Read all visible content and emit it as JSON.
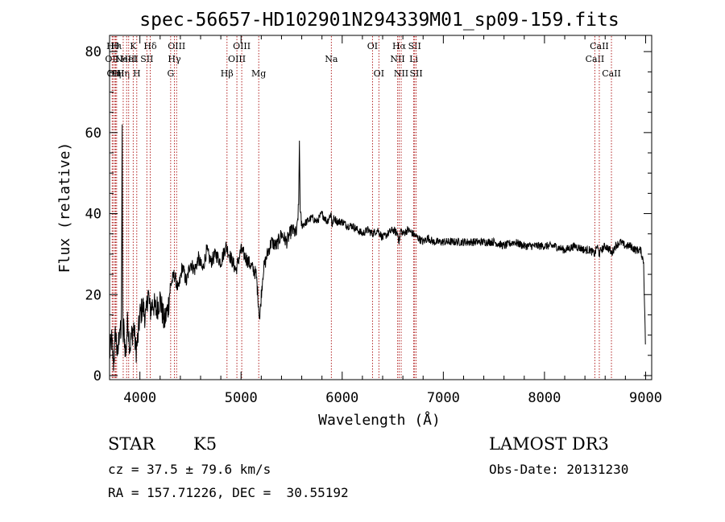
{
  "chart_data": {
    "type": "line",
    "title": "spec-56657-HD102901N294339M01_sp09-159.fits",
    "xlabel": "Wavelength (Å)",
    "ylabel": "Flux (relative)",
    "xlim": [
      3700,
      9060
    ],
    "ylim": [
      -1,
      84
    ],
    "x_ticks": [
      4000,
      5000,
      6000,
      7000,
      8000,
      9000
    ],
    "y_ticks": [
      0,
      20,
      40,
      60,
      80
    ],
    "series": [
      {
        "name": "flux",
        "x": [
          3700,
          3720,
          3740,
          3760,
          3780,
          3800,
          3815,
          3825,
          3830,
          3840,
          3860,
          3880,
          3900,
          3920,
          3940,
          3960,
          3980,
          4000,
          4030,
          4060,
          4080,
          4100,
          4130,
          4160,
          4200,
          4240,
          4280,
          4300,
          4340,
          4380,
          4420,
          4460,
          4500,
          4540,
          4580,
          4620,
          4660,
          4700,
          4750,
          4800,
          4850,
          4900,
          4950,
          5000,
          5050,
          5100,
          5150,
          5175,
          5185,
          5200,
          5220,
          5260,
          5300,
          5350,
          5400,
          5450,
          5500,
          5550,
          5570,
          5577,
          5585,
          5600,
          5650,
          5700,
          5750,
          5800,
          5850,
          5890,
          5900,
          5920,
          5950,
          6000,
          6050,
          6100,
          6150,
          6200,
          6250,
          6300,
          6350,
          6400,
          6450,
          6500,
          6550,
          6563,
          6580,
          6600,
          6650,
          6700,
          6750,
          6800,
          6850,
          6900,
          6950,
          7000,
          7100,
          7200,
          7300,
          7400,
          7500,
          7600,
          7700,
          7800,
          7900,
          8000,
          8100,
          8200,
          8300,
          8400,
          8450,
          8498,
          8520,
          8542,
          8560,
          8600,
          8650,
          8662,
          8700,
          8750,
          8800,
          8850,
          8900,
          8950,
          8980,
          9000
        ],
        "y": [
          5,
          9,
          3,
          11,
          4,
          13,
          8,
          62,
          7,
          12,
          5,
          14,
          7,
          10,
          12,
          6,
          9,
          15,
          17,
          14,
          21,
          16,
          18,
          16,
          19,
          13,
          17,
          22,
          25,
          21,
          27,
          23,
          28,
          26,
          29,
          26,
          31,
          28,
          30,
          28,
          32,
          29,
          26,
          31,
          29,
          27,
          25,
          17,
          14,
          20,
          26,
          30,
          33,
          32,
          35,
          33,
          36,
          35,
          42,
          58,
          40,
          37,
          38,
          39,
          38,
          40,
          38,
          40,
          37,
          39,
          38,
          38,
          37,
          37,
          36,
          35,
          36,
          35,
          36,
          34,
          35,
          36,
          35,
          33,
          36,
          35,
          36,
          35,
          34,
          33,
          34,
          33,
          33,
          33,
          33,
          33,
          33,
          33,
          33,
          32,
          33,
          32,
          32,
          32,
          32,
          31,
          32,
          31,
          31,
          30,
          32,
          30,
          31,
          32,
          31,
          30,
          32,
          33,
          32,
          32,
          31,
          31,
          28,
          6
        ]
      }
    ],
    "line_markers": [
      {
        "w": 3726,
        "label": "OII",
        "row": 2
      },
      {
        "w": 3734,
        "label": "Hθ",
        "row": 1
      },
      {
        "w": 3750,
        "label": "Hη",
        "row": 3
      },
      {
        "w": 3760,
        "label": "OIII",
        "row": 3
      },
      {
        "w": 3770,
        "label": "Hι",
        "row": 1
      },
      {
        "w": 3835,
        "label": "Hη",
        "row": 3
      },
      {
        "w": 3869,
        "label": "NeIII",
        "row": 2
      },
      {
        "w": 3889,
        "label": "HeI",
        "row": 2
      },
      {
        "w": 3934,
        "label": "K",
        "row": 1
      },
      {
        "w": 3969,
        "label": "H",
        "row": 3
      },
      {
        "w": 4069,
        "label": "SII",
        "row": 2
      },
      {
        "w": 4102,
        "label": "Hδ",
        "row": 1
      },
      {
        "w": 4304,
        "label": "G",
        "row": 3
      },
      {
        "w": 4341,
        "label": "Hγ",
        "row": 2
      },
      {
        "w": 4363,
        "label": "OIII",
        "row": 1
      },
      {
        "w": 4861,
        "label": "Hβ",
        "row": 3
      },
      {
        "w": 4959,
        "label": "OIII",
        "row": 2
      },
      {
        "w": 5007,
        "label": "OIII",
        "row": 1
      },
      {
        "w": 5175,
        "label": "Mg",
        "row": 3
      },
      {
        "w": 5893,
        "label": "Na",
        "row": 2
      },
      {
        "w": 6300,
        "label": "OI",
        "row": 1
      },
      {
        "w": 6363,
        "label": "OI",
        "row": 3
      },
      {
        "w": 6548,
        "label": "NII",
        "row": 2
      },
      {
        "w": 6563,
        "label": "Hα",
        "row": 1
      },
      {
        "w": 6583,
        "label": "NII",
        "row": 3
      },
      {
        "w": 6707,
        "label": "Li",
        "row": 2
      },
      {
        "w": 6716,
        "label": "SII",
        "row": 1
      },
      {
        "w": 6731,
        "label": "SII",
        "row": 3
      },
      {
        "w": 8498,
        "label": "CaII",
        "row": 2
      },
      {
        "w": 8542,
        "label": "CaII",
        "row": 1
      },
      {
        "w": 8662,
        "label": "CaII",
        "row": 3
      }
    ]
  },
  "info": {
    "object_class": "STAR",
    "subclass": "K5",
    "survey": "LAMOST DR3",
    "cz": "cz = 37.5 ± 79.6 km/s",
    "obs_date": "Obs-Date: 20131230",
    "coords": "RA = 157.71226, DEC =  30.55192"
  },
  "colors": {
    "line_marker": "#b22222",
    "spectrum": "#000000"
  }
}
